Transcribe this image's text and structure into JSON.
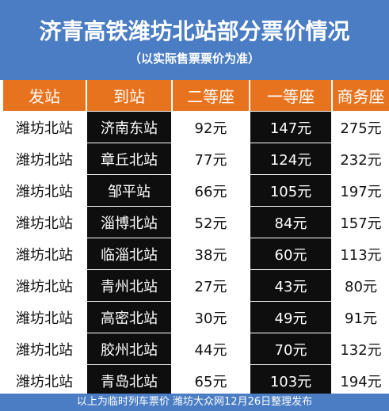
{
  "title": "济青高铁潍坊北站部分票价情况",
  "subtitle": "（以实际售票票价为准）",
  "columns": [
    "发站",
    "到站",
    "二等座",
    "一等座",
    "商务座"
  ],
  "rows": [
    [
      "潍坊北站",
      "济南东站",
      "92元",
      "147元",
      "275元"
    ],
    [
      "潍坊北站",
      "章丘北站",
      "77元",
      "124元",
      "232元"
    ],
    [
      "潍坊北站",
      "邹平站",
      "66元",
      "105元",
      "197元"
    ],
    [
      "潍坊北站",
      "淄博北站",
      "52元",
      "84元",
      "157元"
    ],
    [
      "潍坊北站",
      "临淄北站",
      "38元",
      "60元",
      "113元"
    ],
    [
      "潍坊北站",
      "青州北站",
      "27元",
      "43元",
      "80元"
    ],
    [
      "潍坊北站",
      "高密北站",
      "30元",
      "49元",
      "91元"
    ],
    [
      "潍坊北站",
      "胶州北站",
      "44元",
      "70元",
      "132元"
    ],
    [
      "潍坊北站",
      "青岛北站",
      "65元",
      "103元",
      "194元"
    ]
  ],
  "footer": "以上为临时列车票价  潍坊大众网12月26日整理发布",
  "colors": {
    "header_bg": "#4a7dc4",
    "column_header_bg": "#e8731e",
    "dark_column_bg": "#0e0e0e",
    "light_cell_bg": "#ffffff"
  }
}
